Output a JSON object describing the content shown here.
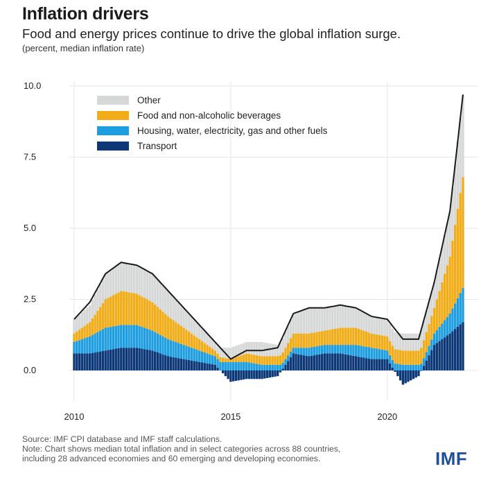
{
  "header": {
    "title": "Inflation drivers",
    "subtitle": "Food and energy prices continue to drive the global inflation surge.",
    "unit": "(percent, median inflation rate)"
  },
  "footer": {
    "source": "Source: IMF CPI database and IMF staff calculations.",
    "note_line1": "Note: Chart shows median total inflation and in select categories across 88 countries,",
    "note_line2": "including 28 advanced economies and 60 emerging and developing economies.",
    "logo": "IMF"
  },
  "chart_data": {
    "type": "area",
    "stacked": true,
    "xlim": [
      "2010-01",
      "2022-06"
    ],
    "ylim": [
      -0.8,
      10.0
    ],
    "x_ticks": [
      "2010",
      "2015",
      "2020"
    ],
    "y_ticks": [
      "10.0",
      "7.5",
      "5.0",
      "2.5",
      "0.0"
    ],
    "y_tick_values": [
      10.0,
      7.5,
      5.0,
      2.5,
      0.0
    ],
    "grid": true,
    "legend_position": "top-left",
    "colors": {
      "Other": "#d6d7d7",
      "Food": "#f2ac18",
      "Housing": "#1e9ee0",
      "Transport": "#0d3878",
      "Total": "#1a1a1a"
    },
    "legend": [
      {
        "key": "Other",
        "label": "Other"
      },
      {
        "key": "Food",
        "label": "Food and non-alcoholic beverages"
      },
      {
        "key": "Housing",
        "label": "Housing, water, electricity, gas and other fuels"
      },
      {
        "key": "Transport",
        "label": "Transport"
      }
    ],
    "x": [
      "2010-01",
      "2010-07",
      "2011-01",
      "2011-07",
      "2012-01",
      "2012-07",
      "2013-01",
      "2013-07",
      "2014-01",
      "2014-07",
      "2015-01",
      "2015-07",
      "2016-01",
      "2016-07",
      "2017-01",
      "2017-07",
      "2018-01",
      "2018-07",
      "2019-01",
      "2019-07",
      "2020-01",
      "2020-07",
      "2021-01",
      "2021-07",
      "2022-01",
      "2022-06"
    ],
    "series": {
      "Transport": [
        0.6,
        0.6,
        0.7,
        0.8,
        0.8,
        0.7,
        0.5,
        0.4,
        0.3,
        0.2,
        -0.4,
        -0.3,
        -0.3,
        -0.2,
        0.6,
        0.5,
        0.6,
        0.6,
        0.5,
        0.4,
        0.4,
        -0.5,
        -0.2,
        0.9,
        1.3,
        1.7
      ],
      "Housing": [
        0.4,
        0.6,
        0.8,
        0.8,
        0.8,
        0.7,
        0.6,
        0.5,
        0.4,
        0.3,
        0.3,
        0.3,
        0.2,
        0.2,
        0.2,
        0.3,
        0.3,
        0.3,
        0.4,
        0.4,
        0.3,
        0.2,
        0.2,
        0.4,
        0.7,
        1.2
      ],
      "Food": [
        0.3,
        0.5,
        1.0,
        1.2,
        1.1,
        1.0,
        0.8,
        0.6,
        0.4,
        0.2,
        0.1,
        0.3,
        0.3,
        0.3,
        0.5,
        0.5,
        0.5,
        0.6,
        0.6,
        0.5,
        0.5,
        0.5,
        0.5,
        0.9,
        2.0,
        3.9
      ],
      "Other": [
        0.5,
        0.6,
        0.9,
        1.0,
        1.0,
        1.0,
        0.9,
        0.7,
        0.5,
        0.3,
        0.4,
        0.4,
        0.5,
        0.4,
        0.7,
        0.9,
        0.8,
        0.8,
        0.7,
        0.6,
        0.6,
        0.6,
        0.6,
        0.9,
        1.6,
        2.9
      ],
      "Total": [
        1.8,
        2.4,
        3.4,
        3.8,
        3.7,
        3.4,
        2.8,
        2.2,
        1.6,
        1.0,
        0.4,
        0.7,
        0.7,
        0.8,
        2.0,
        2.2,
        2.2,
        2.3,
        2.2,
        1.9,
        1.8,
        1.1,
        1.1,
        3.1,
        5.6,
        9.7
      ]
    }
  }
}
